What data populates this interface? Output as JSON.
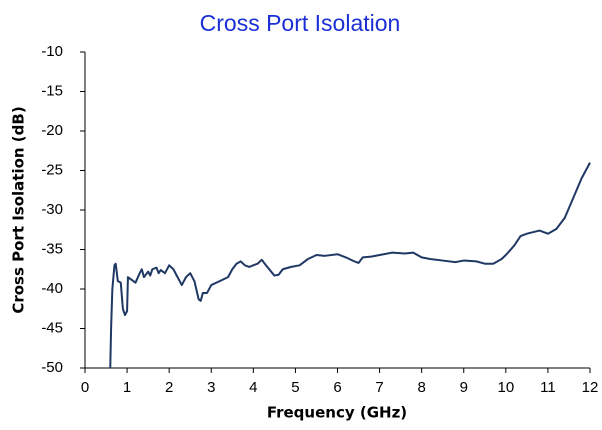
{
  "chart_data": {
    "type": "line",
    "title": "Cross Port Isolation",
    "xlabel": "Frequency  (GHz)",
    "ylabel": "Cross Port Isolation  (dB)",
    "color": "#1f3864",
    "x": [
      0.6,
      0.62,
      0.65,
      0.7,
      0.73,
      0.78,
      0.85,
      0.9,
      0.95,
      1.0,
      1.02,
      1.1,
      1.2,
      1.3,
      1.35,
      1.4,
      1.5,
      1.55,
      1.6,
      1.7,
      1.75,
      1.8,
      1.9,
      2.0,
      2.1,
      2.2,
      2.3,
      2.4,
      2.5,
      2.6,
      2.7,
      2.75,
      2.8,
      2.9,
      3.0,
      3.2,
      3.4,
      3.5,
      3.6,
      3.7,
      3.8,
      3.9,
      4.0,
      4.1,
      4.2,
      4.3,
      4.5,
      4.6,
      4.7,
      4.9,
      5.1,
      5.3,
      5.5,
      5.7,
      6.0,
      6.2,
      6.4,
      6.5,
      6.6,
      6.8,
      7.0,
      7.3,
      7.6,
      7.8,
      8.0,
      8.2,
      8.5,
      8.8,
      9.0,
      9.3,
      9.5,
      9.7,
      9.9,
      10.0,
      10.2,
      10.35,
      10.5,
      10.8,
      11.0,
      11.2,
      11.4,
      11.6,
      11.8,
      12.0
    ],
    "values": [
      -50,
      -45,
      -40,
      -37,
      -36.8,
      -39,
      -39.2,
      -42.5,
      -43.3,
      -42.8,
      -38.5,
      -38.8,
      -39.2,
      -38,
      -37.5,
      -38.5,
      -37.8,
      -38.3,
      -37.5,
      -37.3,
      -38,
      -37.6,
      -38,
      -37,
      -37.5,
      -38.5,
      -39.5,
      -38.5,
      -38,
      -39,
      -41.3,
      -41.5,
      -40.5,
      -40.5,
      -39.5,
      -39,
      -38.5,
      -37.5,
      -36.8,
      -36.5,
      -37,
      -37.2,
      -37,
      -36.8,
      -36.3,
      -37,
      -38.3,
      -38.2,
      -37.5,
      -37.2,
      -37,
      -36.2,
      -35.7,
      -35.8,
      -35.6,
      -36,
      -36.5,
      -36.7,
      -36,
      -35.9,
      -35.7,
      -35.4,
      -35.5,
      -35.4,
      -36,
      -36.2,
      -36.4,
      -36.6,
      -36.4,
      -36.5,
      -36.8,
      -36.8,
      -36.2,
      -35.7,
      -34.5,
      -33.3,
      -33,
      -32.6,
      -33,
      -32.4,
      -31,
      -28.5,
      -26,
      -24
    ],
    "xlim": [
      0,
      12
    ],
    "xticks": [
      0,
      1,
      2,
      3,
      4,
      5,
      6,
      7,
      8,
      9,
      10,
      11,
      12
    ],
    "ylim": [
      -50,
      -10
    ],
    "yticks": [
      -50,
      -45,
      -40,
      -35,
      -30,
      -25,
      -20,
      -15,
      -10
    ],
    "grid": false
  }
}
